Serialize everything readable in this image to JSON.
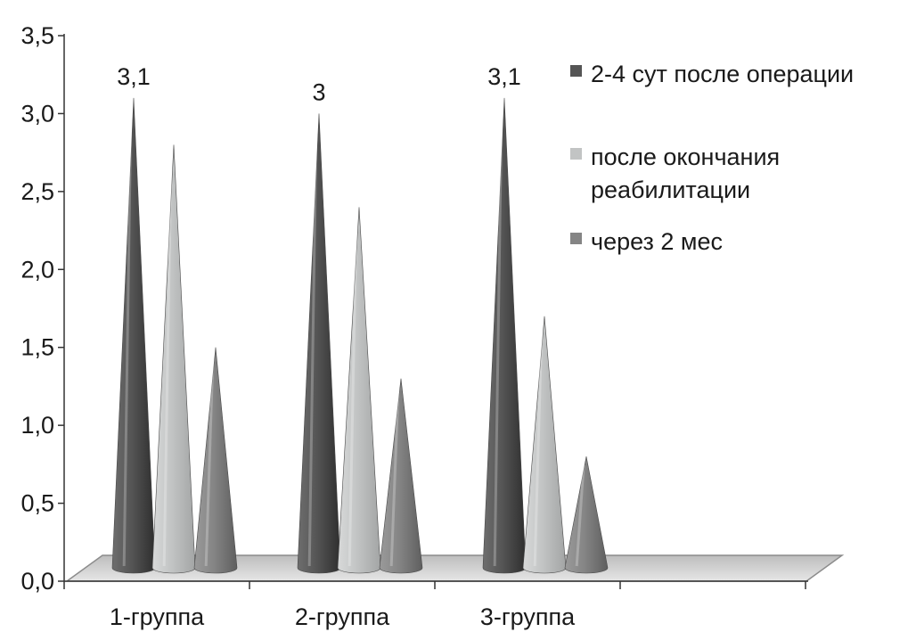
{
  "chart_data": {
    "type": "bar",
    "bar_shape": "cone",
    "three_d": true,
    "categories": [
      "1-группа",
      "2-группа",
      "3-группа"
    ],
    "series": [
      {
        "name": "2-4 сут после операции",
        "values": [
          3.1,
          3.0,
          3.1
        ],
        "color": "#555555"
      },
      {
        "name": "после окончания реабилитации",
        "name_lines": [
          "после окончания",
          "реабилитации"
        ],
        "values": [
          2.8,
          2.4,
          1.7
        ],
        "color": "#c2c4c4"
      },
      {
        "name": "через 2 мес",
        "values": [
          1.5,
          1.3,
          0.8
        ],
        "color": "#858585"
      }
    ],
    "data_labels": [
      {
        "series": 0,
        "category": 0,
        "text": "3,1"
      },
      {
        "series": 0,
        "category": 1,
        "text": "3"
      },
      {
        "series": 0,
        "category": 2,
        "text": "3,1"
      }
    ],
    "y_ticks": [
      "0,0",
      "0,5",
      "1,0",
      "1,5",
      "2,0",
      "2,5",
      "3,0",
      "3,5"
    ],
    "ylim": [
      0,
      3.5
    ],
    "title": "",
    "xlabel": "",
    "ylabel": "",
    "grid": false,
    "legend_position": "right"
  }
}
